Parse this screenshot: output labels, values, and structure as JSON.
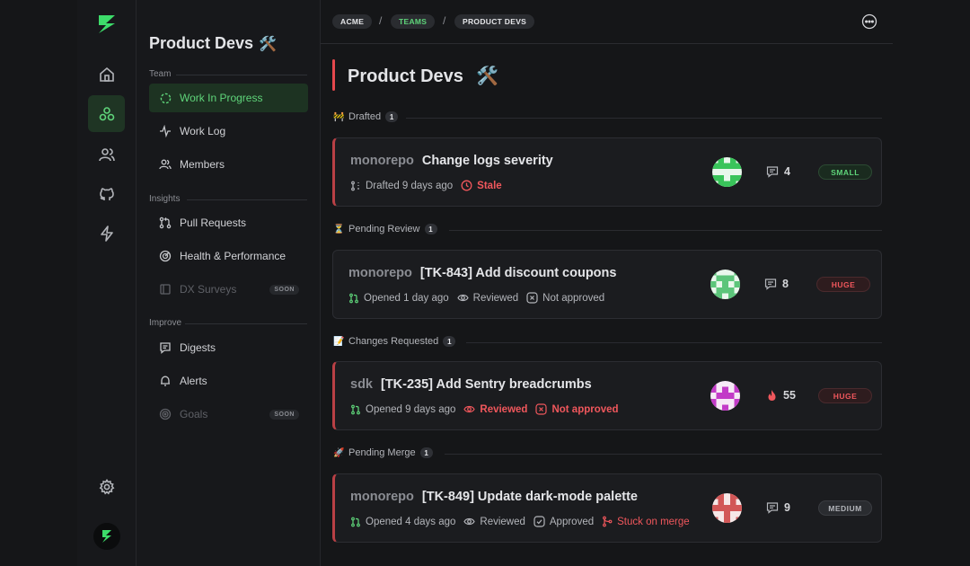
{
  "sidebar": {
    "title": "Product Devs",
    "title_emoji": "🛠️",
    "sections": [
      {
        "label": "Team"
      },
      {
        "label": "Insights"
      },
      {
        "label": "Improve"
      }
    ],
    "items": [
      {
        "label": "Work In Progress",
        "icon": "wip-icon",
        "active": true
      },
      {
        "label": "Work Log",
        "icon": "activity-icon"
      },
      {
        "label": "Members",
        "icon": "users-icon"
      },
      {
        "label": "Pull Requests",
        "icon": "pull-request-icon"
      },
      {
        "label": "Health & Performance",
        "icon": "health-icon"
      },
      {
        "label": "DX Surveys",
        "icon": "survey-icon",
        "badge": "SOON",
        "disabled": true
      },
      {
        "label": "Digests",
        "icon": "message-icon"
      },
      {
        "label": "Alerts",
        "icon": "bell-icon"
      },
      {
        "label": "Goals",
        "icon": "target-icon",
        "badge": "SOON",
        "disabled": true
      }
    ]
  },
  "breadcrumb": [
    "ACME",
    "TEAMS",
    "PRODUCT DEVS"
  ],
  "page": {
    "title": "Product Devs",
    "title_emoji": "🛠️"
  },
  "groups": [
    {
      "label": "Drafted",
      "emoji": "🚧",
      "count": "1",
      "card": {
        "repo": "monorepo",
        "title": "Change logs severity",
        "meta": [
          {
            "text": "Drafted 9 days ago",
            "icon": "pr-draft-icon"
          },
          {
            "text": "Stale",
            "icon": "clock-icon",
            "alert": true
          }
        ],
        "stat": "4",
        "stat_icon": "comment-icon",
        "size": "SMALL",
        "size_color": "#5fd57a"
      }
    },
    {
      "label": "Pending Review",
      "emoji": "⏳",
      "count": "1",
      "card": {
        "repo": "monorepo",
        "title": "[TK-843] Add discount coupons",
        "meta": [
          {
            "text": "Opened 1 day ago",
            "icon": "pr-open-icon"
          },
          {
            "text": "Reviewed",
            "icon": "eye-icon"
          },
          {
            "text": "Not approved",
            "icon": "x-circle-icon"
          }
        ],
        "stat": "8",
        "stat_icon": "comment-icon",
        "size": "HUGE",
        "size_color": "#f0575c"
      }
    },
    {
      "label": "Changes Requested",
      "emoji": "📝",
      "count": "1",
      "card": {
        "repo": "sdk",
        "title": "[TK-235] Add Sentry breadcrumbs",
        "meta": [
          {
            "text": "Opened 9 days ago",
            "icon": "pr-open-icon"
          },
          {
            "text": "Reviewed",
            "icon": "eye-icon",
            "alert": true
          },
          {
            "text": "Not approved",
            "icon": "x-circle-icon",
            "alert": true
          }
        ],
        "stat": "55",
        "stat_icon": "fire-icon",
        "size": "HUGE",
        "size_color": "#f0575c"
      }
    },
    {
      "label": "Pending Merge",
      "emoji": "🚀",
      "count": "1",
      "card": {
        "repo": "monorepo",
        "title": "[TK-849] Update dark-mode palette",
        "meta": [
          {
            "text": "Opened 4 days ago",
            "icon": "pr-open-icon"
          },
          {
            "text": "Reviewed",
            "icon": "eye-icon"
          },
          {
            "text": "Approved",
            "icon": "check-circle-icon"
          },
          {
            "text": "Stuck on merge",
            "icon": "merge-icon",
            "alert": true
          }
        ],
        "stat": "9",
        "stat_icon": "comment-icon",
        "size": "MEDIUM",
        "size_color": "#b3b5ba"
      }
    }
  ],
  "colors": {
    "accent": "#5fd57a",
    "alert": "#f0575c",
    "background": "#151618",
    "card": "#1b1c1f"
  }
}
